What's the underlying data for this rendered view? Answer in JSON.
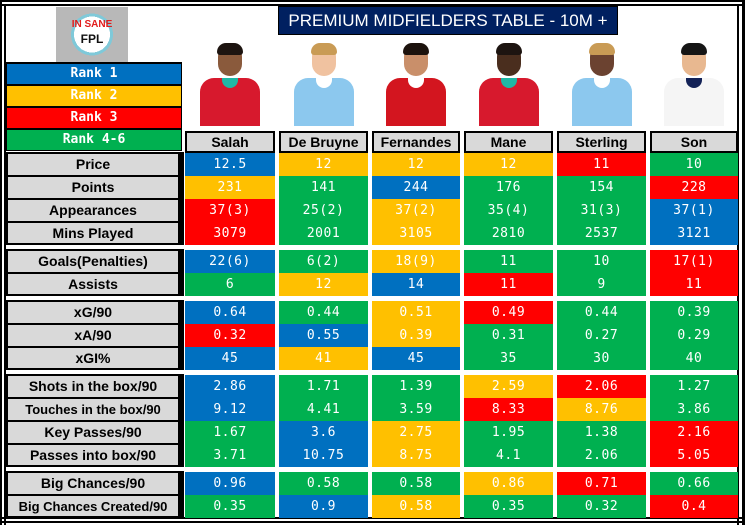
{
  "logo": {
    "line1": "IN SANE",
    "line2": "FPL"
  },
  "title": "PREMIUM MIDFIELDERS TABLE - 10M +",
  "colors": {
    "rank1": "#0070c0",
    "rank2": "#ffc000",
    "rank3": "#ff0000",
    "rank4_6": "#00b050",
    "title_bg": "#002060",
    "label_bg": "#d9d9d9"
  },
  "legend": [
    {
      "label": "Rank  1",
      "color": "blue"
    },
    {
      "label": "Rank  2",
      "color": "yellow"
    },
    {
      "label": "Rank  3",
      "color": "red"
    },
    {
      "label": "Rank  4-6",
      "color": "green"
    }
  ],
  "players": [
    {
      "name": "Salah",
      "kit": "liverpool"
    },
    {
      "name": "De Bruyne",
      "kit": "man-city"
    },
    {
      "name": "Fernandes",
      "kit": "man-utd"
    },
    {
      "name": "Mane",
      "kit": "liverpool"
    },
    {
      "name": "Sterling",
      "kit": "man-city"
    },
    {
      "name": "Son",
      "kit": "tottenham"
    }
  ],
  "groups": [
    {
      "rows": [
        {
          "label": "Price",
          "values": [
            "12.5",
            "12",
            "12",
            "12",
            "11",
            "10"
          ],
          "ranks": [
            "b",
            "y",
            "y",
            "y",
            "r",
            "g"
          ]
        },
        {
          "label": "Points",
          "values": [
            "231",
            "141",
            "244",
            "176",
            "154",
            "228"
          ],
          "ranks": [
            "y",
            "g",
            "b",
            "g",
            "g",
            "r"
          ]
        },
        {
          "label": "Appearances",
          "values": [
            "37(3)",
            "25(2)",
            "37(2)",
            "35(4)",
            "31(3)",
            "37(1)"
          ],
          "ranks": [
            "r",
            "g",
            "y",
            "g",
            "g",
            "b"
          ]
        },
        {
          "label": "Mins Played",
          "values": [
            "3079",
            "2001",
            "3105",
            "2810",
            "2537",
            "3121"
          ],
          "ranks": [
            "r",
            "g",
            "y",
            "g",
            "g",
            "b"
          ]
        }
      ]
    },
    {
      "rows": [
        {
          "label": "Goals(Penalties)",
          "values": [
            "22(6)",
            "6(2)",
            "18(9)",
            "11",
            "10",
            "17(1)"
          ],
          "ranks": [
            "b",
            "g",
            "y",
            "g",
            "g",
            "r"
          ]
        },
        {
          "label": "Assists",
          "values": [
            "6",
            "12",
            "14",
            "11",
            "9",
            "11"
          ],
          "ranks": [
            "g",
            "y",
            "b",
            "r",
            "g",
            "r"
          ]
        }
      ]
    },
    {
      "rows": [
        {
          "label": "xG/90",
          "values": [
            "0.64",
            "0.44",
            "0.51",
            "0.49",
            "0.44",
            "0.39"
          ],
          "ranks": [
            "b",
            "g",
            "y",
            "r",
            "g",
            "g"
          ]
        },
        {
          "label": "xA/90",
          "values": [
            "0.32",
            "0.55",
            "0.39",
            "0.31",
            "0.27",
            "0.29"
          ],
          "ranks": [
            "r",
            "b",
            "y",
            "g",
            "g",
            "g"
          ]
        },
        {
          "label": "xGI%",
          "values": [
            "45",
            "41",
            "45",
            "35",
            "30",
            "40"
          ],
          "ranks": [
            "b",
            "y",
            "b",
            "g",
            "g",
            "g"
          ]
        }
      ]
    },
    {
      "rows": [
        {
          "label": "Shots in the box/90",
          "values": [
            "2.86",
            "1.71",
            "1.39",
            "2.59",
            "2.06",
            "1.27"
          ],
          "ranks": [
            "b",
            "g",
            "g",
            "y",
            "r",
            "g"
          ]
        },
        {
          "label": "Touches in the box/90",
          "values": [
            "9.12",
            "4.41",
            "3.59",
            "8.33",
            "8.76",
            "3.86"
          ],
          "ranks": [
            "b",
            "g",
            "g",
            "r",
            "y",
            "g"
          ]
        },
        {
          "label": "Key Passes/90",
          "values": [
            "1.67",
            "3.6",
            "2.75",
            "1.95",
            "1.38",
            "2.16"
          ],
          "ranks": [
            "g",
            "b",
            "y",
            "g",
            "g",
            "r"
          ]
        },
        {
          "label": "Passes into box/90",
          "values": [
            "3.71",
            "10.75",
            "8.75",
            "4.1",
            "2.06",
            "5.05"
          ],
          "ranks": [
            "g",
            "b",
            "y",
            "g",
            "g",
            "r"
          ]
        }
      ]
    },
    {
      "rows": [
        {
          "label": "Big Chances/90",
          "values": [
            "0.96",
            "0.58",
            "0.58",
            "0.86",
            "0.71",
            "0.66"
          ],
          "ranks": [
            "b",
            "g",
            "g",
            "y",
            "r",
            "g"
          ]
        },
        {
          "label": "Big Chances Created/90",
          "values": [
            "0.35",
            "0.9",
            "0.58",
            "0.35",
            "0.32",
            "0.4"
          ],
          "ranks": [
            "g",
            "b",
            "y",
            "g",
            "g",
            "r"
          ]
        }
      ]
    }
  ]
}
